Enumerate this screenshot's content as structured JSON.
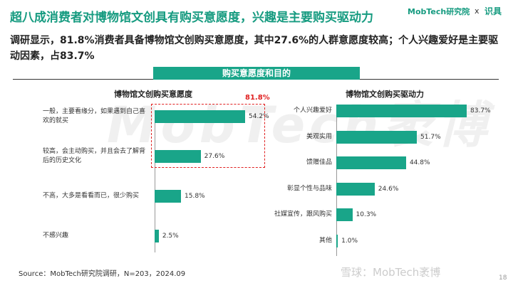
{
  "header": {
    "title": "超八成消费者对博物馆文创具有购买意愿度，兴趣是主要购买驱动力",
    "subtitle": "调研显示，81.8%消费者具备博物馆文创购买意愿度，其中27.6%的人群意愿度较高；个人兴趣爱好是主要驱动因素，占83.7%",
    "banner": "购买意愿度和目的",
    "logo": "MobTech研究院",
    "logo_x": "x",
    "logo_partner": "识具",
    "watermark": "MobTech袤博",
    "watermark2": "雪球：MobTech袤博",
    "source": "Source：MobTech研究院调研，N=203，2024.09",
    "page": "18"
  },
  "chart_data": [
    {
      "type": "hbar",
      "title": "博物馆文创购买意愿度",
      "color": "#19a589",
      "categories": [
        "一般，主要看缘分，如果遇到自己喜欢的就买",
        "较高，会主动购买，并且会去了解背后的历史文化",
        "不高，大多是看看而已，很少购买",
        "不感兴趣"
      ],
      "values": [
        54.2,
        27.6,
        15.8,
        2.5
      ],
      "value_labels": [
        "54.2%",
        "27.6%",
        "15.8%",
        "2.5%"
      ],
      "annotation": "81.8%",
      "annotation_color": "#e02020"
    },
    {
      "type": "hbar",
      "title": "博物馆文创购买驱动力",
      "color": "#19a589",
      "categories": [
        "个人兴趣爱好",
        "美观实用",
        "馈赠佳品",
        "彰显个性与品味",
        "社媒宣传，跟风购买",
        "其他"
      ],
      "values": [
        83.7,
        51.7,
        44.8,
        24.6,
        10.3,
        1.0
      ],
      "value_labels": [
        "83.7%",
        "51.7%",
        "44.8%",
        "24.6%",
        "10.3%",
        "1.0%"
      ]
    }
  ]
}
